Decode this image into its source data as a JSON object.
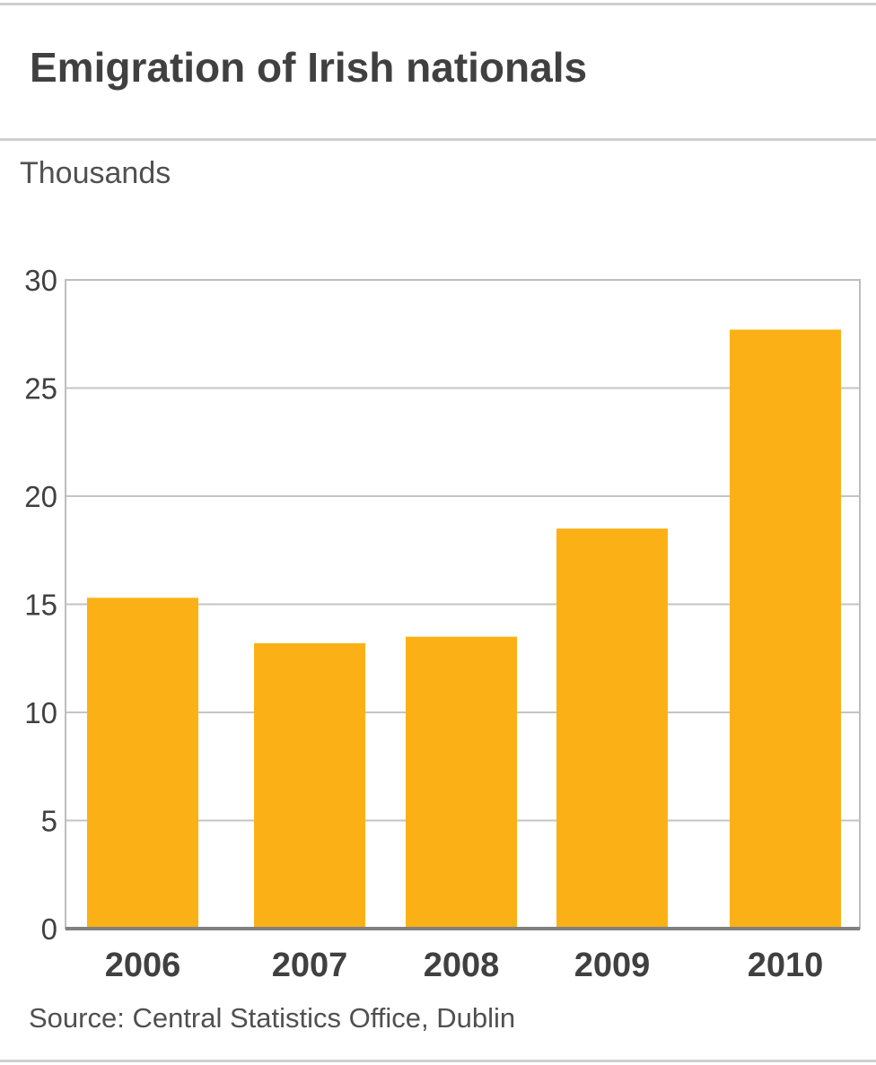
{
  "chart_data": {
    "type": "bar",
    "title": "Emigration of Irish nationals",
    "ylabel": "Thousands",
    "xlabel": "",
    "categories": [
      "2006",
      "2007",
      "2008",
      "2009",
      "2010"
    ],
    "values": [
      15.3,
      13.2,
      13.5,
      18.5,
      27.7
    ],
    "ylim": [
      0,
      30
    ],
    "yticks": [
      0,
      5,
      10,
      15,
      20,
      25,
      30
    ],
    "grid": true,
    "bar_color": "#fbb116",
    "source": "Source: Central Statistics Office, Dublin"
  }
}
